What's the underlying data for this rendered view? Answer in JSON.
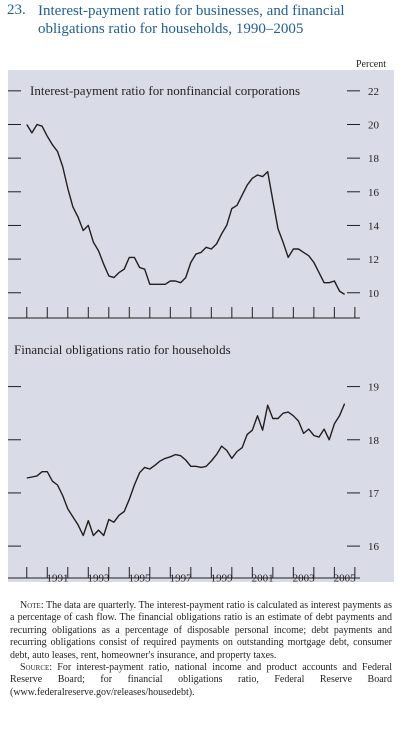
{
  "figure": {
    "number": "23.",
    "title": "Interest-payment ratio for businesses, and financial obligations ratio for households, 1990–2005",
    "unit_label": "Percent"
  },
  "chart_data": [
    {
      "type": "line",
      "title": "Interest-payment ratio for nonfinancial corporations",
      "xlabel": "",
      "ylabel": "",
      "xlim": [
        1989.67,
        2006.25
      ],
      "ylim": [
        8.5,
        23.0
      ],
      "y_ticks": [
        10,
        12,
        14,
        16,
        18,
        20,
        22
      ],
      "y_axis_side": "right",
      "grid": false,
      "x": [
        1990.0,
        1990.25,
        1990.5,
        1990.75,
        1991.0,
        1991.25,
        1991.5,
        1991.75,
        1992.0,
        1992.25,
        1992.5,
        1992.75,
        1993.0,
        1993.25,
        1993.5,
        1993.75,
        1994.0,
        1994.25,
        1994.5,
        1994.75,
        1995.0,
        1995.25,
        1995.5,
        1995.75,
        1996.0,
        1996.25,
        1996.5,
        1996.75,
        1997.0,
        1997.25,
        1997.5,
        1997.75,
        1998.0,
        1998.25,
        1998.5,
        1998.75,
        1999.0,
        1999.25,
        1999.5,
        1999.75,
        2000.0,
        2000.25,
        2000.5,
        2000.75,
        2001.0,
        2001.25,
        2001.5,
        2001.75,
        2002.0,
        2002.25,
        2002.5,
        2002.75,
        2003.0,
        2003.25,
        2003.5,
        2003.75,
        2004.0,
        2004.25,
        2004.5,
        2004.75,
        2005.0,
        2005.25,
        2005.5
      ],
      "series": [
        {
          "name": "",
          "color": "#231f20",
          "values": [
            20.0,
            19.5,
            20.0,
            19.9,
            19.3,
            18.8,
            18.4,
            17.5,
            16.2,
            15.1,
            14.5,
            13.7,
            14.0,
            13.0,
            12.5,
            11.7,
            11.0,
            10.9,
            11.2,
            11.4,
            12.1,
            12.1,
            11.5,
            11.4,
            10.5,
            10.5,
            10.5,
            10.5,
            10.7,
            10.7,
            10.6,
            10.9,
            11.8,
            12.3,
            12.4,
            12.7,
            12.6,
            12.9,
            13.5,
            14.0,
            15.0,
            15.2,
            15.8,
            16.4,
            16.8,
            17.0,
            16.9,
            17.2,
            15.5,
            13.8,
            13.0,
            12.1,
            12.6,
            12.6,
            12.4,
            12.2,
            11.8,
            11.2,
            10.6,
            10.6,
            10.7,
            10.1,
            9.9
          ]
        }
      ]
    },
    {
      "type": "line",
      "title": "Financial obligations ratio for households",
      "xlabel": "",
      "ylabel": "",
      "xlim": [
        1989.67,
        2006.25
      ],
      "ylim": [
        15.4,
        19.5
      ],
      "y_ticks": [
        16,
        17,
        18,
        19
      ],
      "y_axis_side": "right",
      "grid": false,
      "x_ticks": [
        "1991",
        "1993",
        "1995",
        "1997",
        "1999",
        "2001",
        "2003",
        "2005"
      ],
      "x": [
        1990.0,
        1990.25,
        1990.5,
        1990.75,
        1991.0,
        1991.25,
        1991.5,
        1991.75,
        1992.0,
        1992.25,
        1992.5,
        1992.75,
        1993.0,
        1993.25,
        1993.5,
        1993.75,
        1994.0,
        1994.25,
        1994.5,
        1994.75,
        1995.0,
        1995.25,
        1995.5,
        1995.75,
        1996.0,
        1996.25,
        1996.5,
        1996.75,
        1997.0,
        1997.25,
        1997.5,
        1997.75,
        1998.0,
        1998.25,
        1998.5,
        1998.75,
        1999.0,
        1999.25,
        1999.5,
        1999.75,
        2000.0,
        2000.25,
        2000.5,
        2000.75,
        2001.0,
        2001.25,
        2001.5,
        2001.75,
        2002.0,
        2002.25,
        2002.5,
        2002.75,
        2003.0,
        2003.25,
        2003.5,
        2003.75,
        2004.0,
        2004.25,
        2004.5,
        2004.75,
        2005.0,
        2005.25,
        2005.5
      ],
      "series": [
        {
          "name": "",
          "color": "#231f20",
          "values": [
            17.28,
            17.3,
            17.32,
            17.4,
            17.4,
            17.22,
            17.15,
            16.95,
            16.7,
            16.55,
            16.4,
            16.2,
            16.48,
            16.2,
            16.3,
            16.2,
            16.5,
            16.45,
            16.58,
            16.65,
            16.88,
            17.15,
            17.38,
            17.48,
            17.45,
            17.52,
            17.6,
            17.65,
            17.68,
            17.72,
            17.7,
            17.62,
            17.5,
            17.5,
            17.48,
            17.5,
            17.6,
            17.72,
            17.88,
            17.8,
            17.65,
            17.78,
            17.85,
            18.1,
            18.18,
            18.45,
            18.18,
            18.65,
            18.4,
            18.4,
            18.5,
            18.52,
            18.45,
            18.35,
            18.12,
            18.2,
            18.08,
            18.05,
            18.2,
            18.0,
            18.3,
            18.45,
            18.68
          ]
        }
      ]
    }
  ],
  "notes": {
    "note_label": "Note:",
    "note_text": "The data are quarterly. The interest-payment ratio is calculated as interest payments as a percentage of cash flow. The financial obligations ratio is an estimate of debt payments and recurring obligations as a percentage of disposable personal income; debt payments and recurring obligations consist of required payments on outstanding mortgage debt, consumer debt, auto leases, rent, homeowner's insurance, and property taxes.",
    "source_label": "Source:",
    "source_text": "For interest-payment ratio, national income and product accounts and Federal Reserve Board; for financial obligations ratio, Federal Reserve Board (www.federalreserve.gov/releases/housedebt)."
  }
}
